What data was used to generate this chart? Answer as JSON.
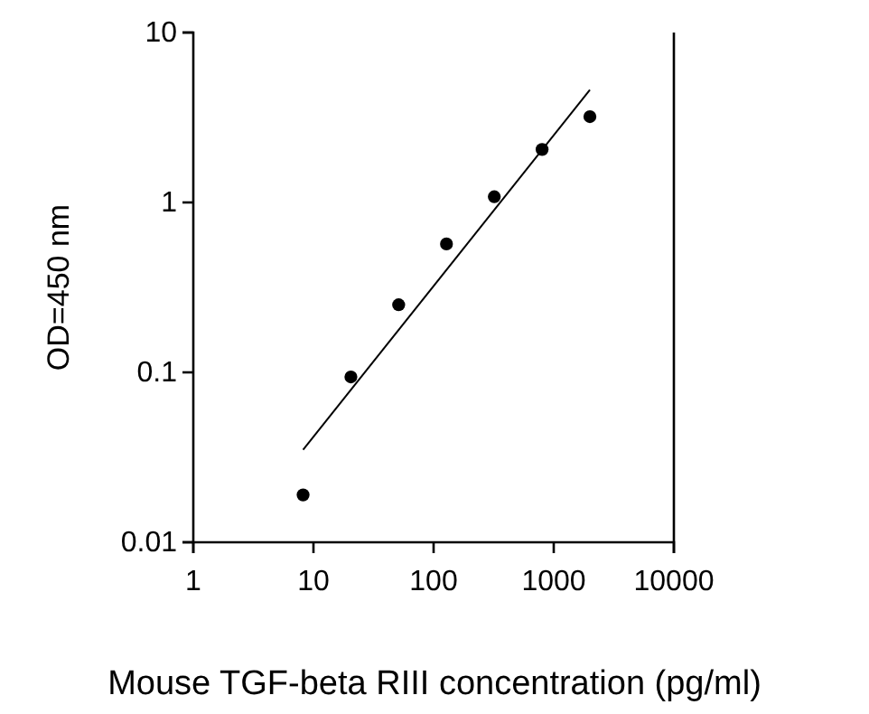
{
  "chart_data": {
    "type": "scatter",
    "xlabel": "Mouse TGF-beta RIII concentration (pg/ml)",
    "ylabel": "OD=450 nm",
    "log": "xy",
    "xlim": [
      1,
      10000
    ],
    "xticks": [
      1,
      10,
      100,
      1000,
      10000
    ],
    "ylim": [
      0.01,
      10
    ],
    "yticks": [
      0.01,
      0.1,
      1,
      10
    ],
    "grid": false,
    "marker": "circle",
    "series": [
      {
        "color": "#000000",
        "x": [
          8.2,
          20.5,
          51.2,
          128,
          320,
          800,
          2000
        ],
        "values": [
          0.019,
          0.094,
          0.25,
          0.57,
          1.08,
          2.05,
          3.2
        ]
      },
      {
        "type": "line",
        "color": "#000000",
        "line_style": "solid",
        "marker": "none",
        "x": [
          8.2,
          2000
        ],
        "values": [
          0.035,
          4.6
        ]
      }
    ]
  }
}
